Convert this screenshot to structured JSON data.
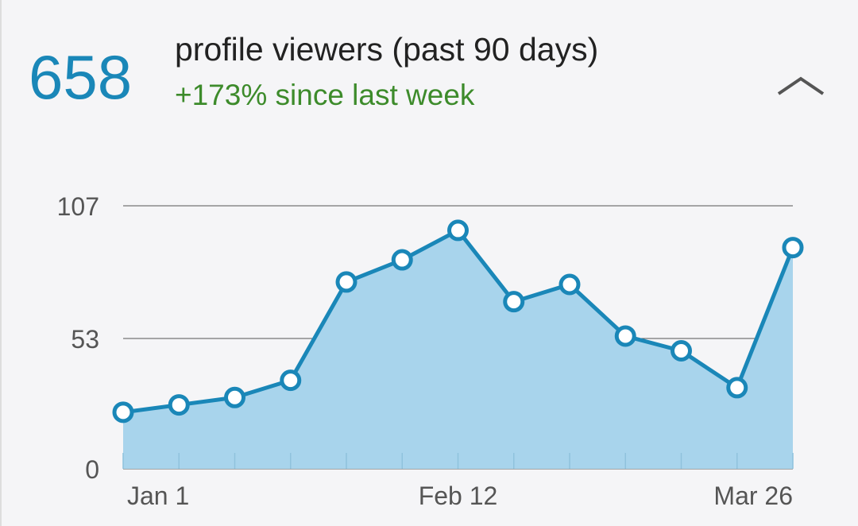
{
  "header": {
    "count": "658",
    "title": "profile viewers (past 90 days)",
    "change": "+173% since last week"
  },
  "chart_data": {
    "type": "area",
    "categories": [
      "Jan 1",
      null,
      null,
      null,
      null,
      null,
      "Feb 12",
      null,
      null,
      null,
      null,
      null,
      "Mar 26"
    ],
    "series": [
      {
        "color": "#1a87b8",
        "values": [
          23,
          26,
          29,
          36,
          76,
          85,
          97,
          68,
          75,
          54,
          48,
          33,
          90
        ]
      }
    ],
    "ylim": [
      0,
      107
    ],
    "yticks": [
      0,
      53,
      107
    ],
    "grid": true
  }
}
